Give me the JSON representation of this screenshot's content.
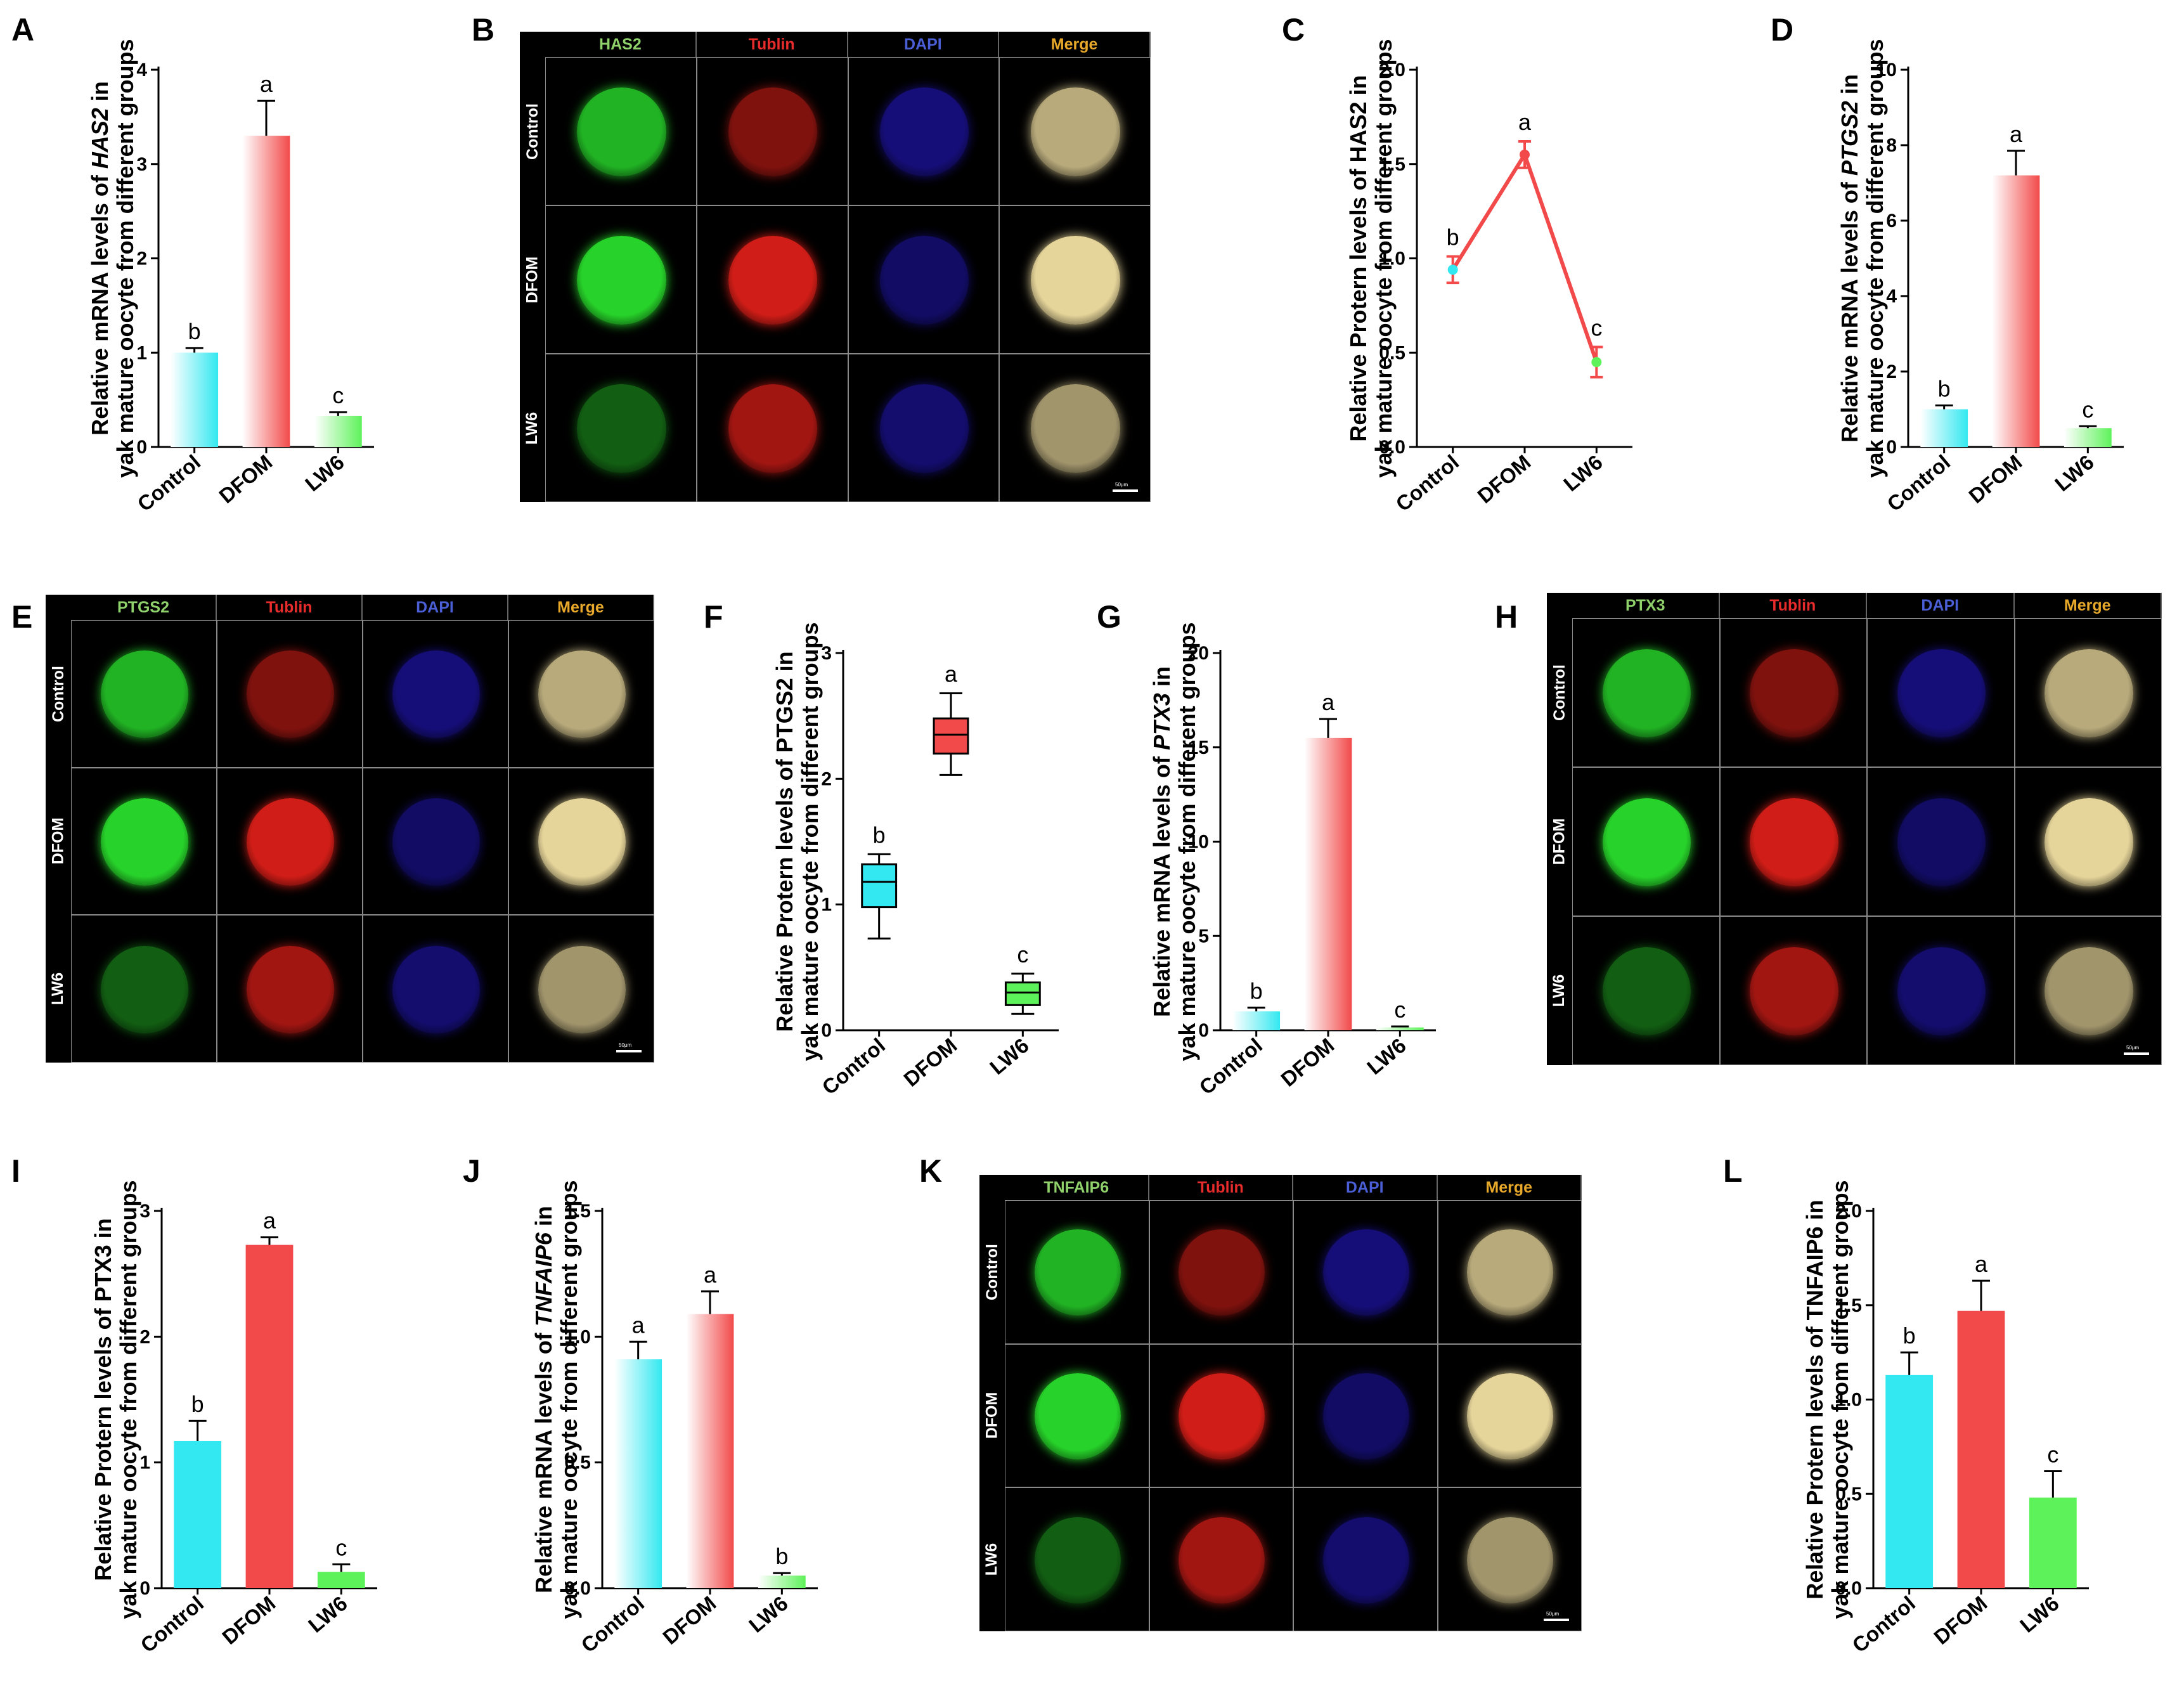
{
  "panel_letters": [
    "A",
    "B",
    "C",
    "D",
    "E",
    "F",
    "G",
    "H",
    "I",
    "J",
    "K",
    "L"
  ],
  "colors": {
    "control": "#33e8f0",
    "dfom": "#f24a4a",
    "lw6": "#5ef25a",
    "green_channel": "#27d22a",
    "red_channel": "#e8201a",
    "blue_channel": "#2418c8",
    "header_green": "#8fd16a",
    "header_red": "#e82b2b",
    "header_blue": "#4a5fd6",
    "header_merge": "#e8a92a"
  },
  "image_panels": [
    {
      "id": "B",
      "headers": [
        "HAS2",
        "Tublin",
        "DAPI",
        "Merge"
      ],
      "rows": [
        "Control",
        "DFOM",
        "LW6"
      ],
      "scale_text": "50μm"
    },
    {
      "id": "E",
      "headers": [
        "PTGS2",
        "Tublin",
        "DAPI",
        "Merge"
      ],
      "rows": [
        "Control",
        "DFOM",
        "LW6"
      ],
      "scale_text": "50μm"
    },
    {
      "id": "H",
      "headers": [
        "PTX3",
        "Tublin",
        "DAPI",
        "Merge"
      ],
      "rows": [
        "Control",
        "DFOM",
        "LW6"
      ],
      "scale_text": "50μm"
    },
    {
      "id": "K",
      "headers": [
        "TNFAIP6",
        "Tublin",
        "DAPI",
        "Merge"
      ],
      "rows": [
        "Control",
        "DFOM",
        "LW6"
      ],
      "scale_text": "50μm"
    }
  ],
  "chart_data": [
    {
      "id": "A",
      "type": "bar",
      "style": "gradient",
      "title_line1": [
        "Relative mRNA levels of ",
        "HAS2",
        " in"
      ],
      "title_line2": "yak mature oocyte from different groups",
      "categories": [
        "Control",
        "DFOM",
        "LW6"
      ],
      "values": [
        1.0,
        3.3,
        0.33
      ],
      "errors": [
        0.05,
        0.37,
        0.04
      ],
      "letters": [
        "b",
        "a",
        "c"
      ],
      "ylim": [
        0,
        4
      ],
      "ticks": [
        "0",
        "1",
        "2",
        "3",
        "4"
      ]
    },
    {
      "id": "C",
      "type": "line",
      "title_line1": [
        "Relative Protern levels of HAS2 in"
      ],
      "title_line2": "yak mature oocyte from different groups",
      "categories": [
        "Control",
        "DFOM",
        "LW6"
      ],
      "values": [
        0.94,
        1.55,
        0.45
      ],
      "errors": [
        0.07,
        0.07,
        0.08
      ],
      "letters": [
        "b",
        "a",
        "c"
      ],
      "ylim": [
        0,
        2.0
      ],
      "ticks": [
        "0.0",
        "0.5",
        "1.0",
        "1.5",
        "2.0"
      ]
    },
    {
      "id": "D",
      "type": "bar",
      "style": "gradient",
      "title_line1": [
        "Relative mRNA levels of ",
        "PTGS2",
        " in"
      ],
      "title_line2": "yak mature oocyte from different groups",
      "categories": [
        "Control",
        "DFOM",
        "LW6"
      ],
      "values": [
        1.0,
        7.2,
        0.5
      ],
      "errors": [
        0.1,
        0.65,
        0.05
      ],
      "letters": [
        "b",
        "a",
        "c"
      ],
      "ylim": [
        0,
        10
      ],
      "ticks": [
        "0",
        "2",
        "4",
        "6",
        "8",
        "10"
      ]
    },
    {
      "id": "F",
      "type": "box",
      "title_line1": [
        "Relative Protern levels of PTGS2 in"
      ],
      "title_line2": "yak mature oocyte from different groups",
      "categories": [
        "Control",
        "DFOM",
        "LW6"
      ],
      "boxes": [
        {
          "min": 0.73,
          "q1": 0.98,
          "median": 1.18,
          "q3": 1.32,
          "max": 1.4
        },
        {
          "min": 2.03,
          "q1": 2.2,
          "median": 2.35,
          "q3": 2.48,
          "max": 2.68
        },
        {
          "min": 0.13,
          "q1": 0.2,
          "median": 0.3,
          "q3": 0.38,
          "max": 0.45
        }
      ],
      "letters": [
        "b",
        "a",
        "c"
      ],
      "ylim": [
        0,
        3
      ],
      "ticks": [
        "0",
        "1",
        "2",
        "3"
      ]
    },
    {
      "id": "G",
      "type": "bar",
      "style": "gradient",
      "title_line1": [
        "Relative mRNA levels of ",
        "PTX3",
        " in"
      ],
      "title_line2": "yak mature oocyte from different groups",
      "categories": [
        "Control",
        "DFOM",
        "LW6"
      ],
      "values": [
        1.0,
        15.5,
        0.15
      ],
      "errors": [
        0.2,
        1.0,
        0.05
      ],
      "letters": [
        "b",
        "a",
        "c"
      ],
      "ylim": [
        0,
        20
      ],
      "ticks": [
        "0",
        "5",
        "10",
        "15",
        "20"
      ]
    },
    {
      "id": "I",
      "type": "bar",
      "style": "solid",
      "title_line1": [
        "Relative Protern levels of PTX3 in"
      ],
      "title_line2": "yak mature oocyte from different groups",
      "categories": [
        "Control",
        "DFOM",
        "LW6"
      ],
      "values": [
        1.17,
        2.73,
        0.13
      ],
      "errors": [
        0.16,
        0.06,
        0.06
      ],
      "letters": [
        "b",
        "a",
        "c"
      ],
      "ylim": [
        0,
        3
      ],
      "ticks": [
        "0",
        "1",
        "2",
        "3"
      ]
    },
    {
      "id": "J",
      "type": "bar",
      "style": "gradient",
      "title_line1": [
        "Relative mRNA levels of ",
        "TNFAIP6",
        " in"
      ],
      "title_line2": "yak mature oocyte from different groups",
      "categories": [
        "Control",
        "DFOM",
        "LW6"
      ],
      "values": [
        0.91,
        1.09,
        0.05
      ],
      "errors": [
        0.07,
        0.09,
        0.01
      ],
      "letters": [
        "a",
        "a",
        "b"
      ],
      "ylim": [
        0,
        1.5
      ],
      "ticks": [
        "0.0",
        "0.5",
        "1.0",
        "1.5"
      ]
    },
    {
      "id": "L",
      "type": "bar",
      "style": "solid",
      "title_line1": [
        "Relative Protern levels of TNFAIP6 in"
      ],
      "title_line2": "yak mature oocyte from different groups",
      "categories": [
        "Control",
        "DFOM",
        "LW6"
      ],
      "values": [
        1.13,
        1.47,
        0.48
      ],
      "errors": [
        0.12,
        0.16,
        0.14
      ],
      "letters": [
        "b",
        "a",
        "c"
      ],
      "ylim": [
        0,
        2.0
      ],
      "ticks": [
        "0.0",
        "0.5",
        "1.0",
        "1.5",
        "2.0"
      ]
    }
  ]
}
